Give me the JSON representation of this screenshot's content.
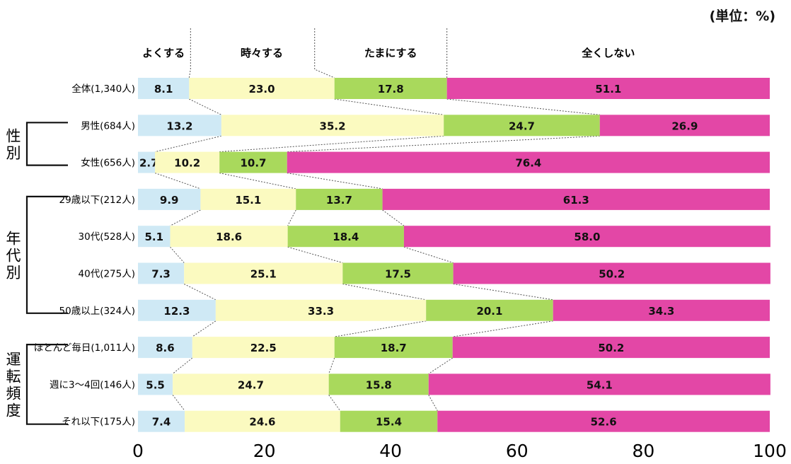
{
  "chart_data": {
    "type": "bar",
    "unit_note": "(単位：%)",
    "series": [
      {
        "name": "よくする",
        "color": "#cfe9f5"
      },
      {
        "name": "時々する",
        "color": "#fbfac0"
      },
      {
        "name": "たまにする",
        "color": "#a9d95c"
      },
      {
        "name": "全くしない",
        "color": "#e347a6"
      }
    ],
    "categories": [
      {
        "label": "全体(1,340人)",
        "values": [
          8.1,
          23.0,
          17.8,
          51.1
        ]
      },
      {
        "label": "男性(684人)",
        "values": [
          13.2,
          35.2,
          24.7,
          26.9
        ]
      },
      {
        "label": "女性(656人)",
        "values": [
          2.7,
          10.2,
          10.7,
          76.4
        ]
      },
      {
        "label": "29歳以下(212人)",
        "values": [
          9.9,
          15.1,
          13.7,
          61.3
        ]
      },
      {
        "label": "30代(528人)",
        "values": [
          5.1,
          18.6,
          18.4,
          58.0
        ]
      },
      {
        "label": "40代(275人)",
        "values": [
          7.3,
          25.1,
          17.5,
          50.2
        ]
      },
      {
        "label": "50歳以上(324人)",
        "values": [
          12.3,
          33.3,
          20.1,
          34.3
        ]
      },
      {
        "label": "ほとんど毎日(1,011人)",
        "values": [
          8.6,
          22.5,
          18.7,
          50.2
        ]
      },
      {
        "label": "週に3〜4回(146人)",
        "values": [
          5.5,
          24.7,
          15.8,
          54.1
        ]
      },
      {
        "label": "それ以下(175人)",
        "values": [
          7.4,
          24.6,
          15.4,
          52.6
        ]
      }
    ],
    "groups": [
      {
        "label": "性別",
        "rows": [
          1,
          2
        ]
      },
      {
        "label": "年代別",
        "rows": [
          3,
          6
        ]
      },
      {
        "label": "運転頻度",
        "rows": [
          7,
          9
        ]
      }
    ],
    "x_ticks": [
      "0",
      "20",
      "40",
      "60",
      "80",
      "100"
    ],
    "xlim": [
      0,
      100
    ],
    "grid": false,
    "legend": "top"
  }
}
